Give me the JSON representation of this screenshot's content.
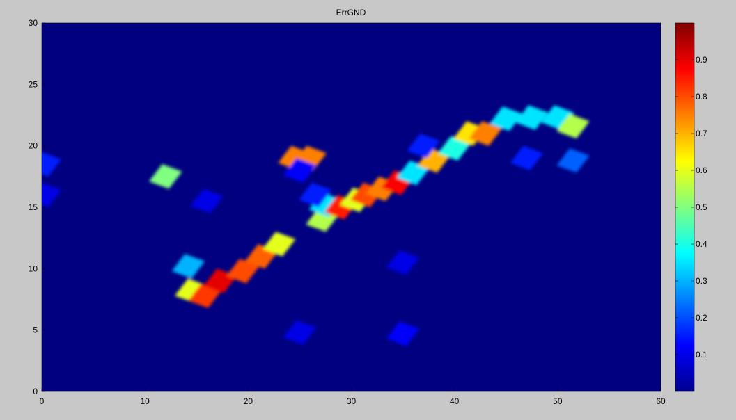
{
  "chart_data": {
    "type": "heatmap",
    "title": "ErrGND",
    "xlabel": "",
    "ylabel": "",
    "xlim": [
      0,
      60
    ],
    "ylim": [
      0,
      30
    ],
    "xticks": [
      0,
      10,
      20,
      30,
      40,
      50,
      60
    ],
    "yticks": [
      0,
      5,
      10,
      15,
      20,
      25,
      30
    ],
    "colorbar": {
      "range": [
        0,
        1
      ],
      "ticks": [
        0.1,
        0.2,
        0.3,
        0.4,
        0.5,
        0.6,
        0.7,
        0.8,
        0.9
      ],
      "colormap": "jet"
    },
    "data_extent_x": [
      0,
      60
    ],
    "background_value": 0.0,
    "hotspots": [
      {
        "x": 12,
        "y": 17.5,
        "value": 0.5
      },
      {
        "x": 14.5,
        "y": 8.2,
        "value": 0.6
      },
      {
        "x": 15.8,
        "y": 7.8,
        "value": 0.82
      },
      {
        "x": 14.2,
        "y": 10.2,
        "value": 0.3
      },
      {
        "x": 17.3,
        "y": 9.0,
        "value": 0.9
      },
      {
        "x": 19.5,
        "y": 9.8,
        "value": 0.8
      },
      {
        "x": 21.3,
        "y": 11.0,
        "value": 0.78
      },
      {
        "x": 23.0,
        "y": 12.0,
        "value": 0.6
      },
      {
        "x": 24.5,
        "y": 19.0,
        "value": 0.75
      },
      {
        "x": 26.0,
        "y": 19.0,
        "value": 0.75
      },
      {
        "x": 27.2,
        "y": 14.0,
        "value": 0.55
      },
      {
        "x": 27.5,
        "y": 15.2,
        "value": 0.35
      },
      {
        "x": 29.0,
        "y": 15.0,
        "value": 0.85
      },
      {
        "x": 30.5,
        "y": 15.6,
        "value": 0.6
      },
      {
        "x": 31.5,
        "y": 16.0,
        "value": 0.8
      },
      {
        "x": 33.0,
        "y": 16.5,
        "value": 0.75
      },
      {
        "x": 34.5,
        "y": 17.0,
        "value": 0.88
      },
      {
        "x": 36.0,
        "y": 17.8,
        "value": 0.35
      },
      {
        "x": 38.0,
        "y": 18.8,
        "value": 0.7
      },
      {
        "x": 40.0,
        "y": 19.8,
        "value": 0.4
      },
      {
        "x": 41.5,
        "y": 21.0,
        "value": 0.65
      },
      {
        "x": 43.0,
        "y": 21.0,
        "value": 0.75
      },
      {
        "x": 45.0,
        "y": 22.2,
        "value": 0.35
      },
      {
        "x": 47.5,
        "y": 22.3,
        "value": 0.35
      },
      {
        "x": 50.0,
        "y": 22.3,
        "value": 0.35
      },
      {
        "x": 51.5,
        "y": 21.6,
        "value": 0.55
      },
      {
        "x": 51.5,
        "y": 18.8,
        "value": 0.22
      },
      {
        "x": 47.0,
        "y": 19.0,
        "value": 0.15
      },
      {
        "x": 37.0,
        "y": 20.0,
        "value": 0.15
      },
      {
        "x": 26.5,
        "y": 16.0,
        "value": 0.15
      },
      {
        "x": 0.3,
        "y": 18.5,
        "value": 0.15
      },
      {
        "x": 0.3,
        "y": 16.0,
        "value": 0.1
      },
      {
        "x": 25.0,
        "y": 18.0,
        "value": 0.12
      },
      {
        "x": 35.0,
        "y": 10.5,
        "value": 0.1
      },
      {
        "x": 35.0,
        "y": 4.7,
        "value": 0.12
      },
      {
        "x": 25.0,
        "y": 4.8,
        "value": 0.1
      },
      {
        "x": 16.0,
        "y": 15.5,
        "value": 0.1
      }
    ]
  }
}
